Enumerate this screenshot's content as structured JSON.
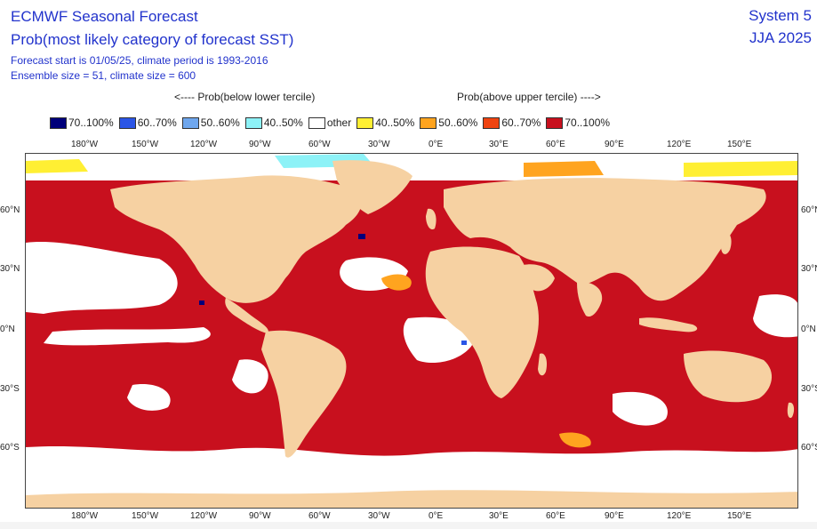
{
  "header": {
    "title": "ECMWF Seasonal Forecast",
    "subtitle": "Prob(most likely category of forecast SST)",
    "forecast_info": "Forecast start is 01/05/25, climate period is 1993-2016",
    "ensemble_info": "Ensemble size = 51, climate size = 600",
    "system": "System 5",
    "period": "JJA 2025"
  },
  "legend": {
    "below_label": "<---- Prob(below lower tercile)",
    "above_label": "Prob(above upper tercile) ---->",
    "items": [
      {
        "label": "70..100%",
        "color": "#00007a"
      },
      {
        "label": "60..70%",
        "color": "#2b55e6"
      },
      {
        "label": "50..60%",
        "color": "#6fa7ee"
      },
      {
        "label": "40..50%",
        "color": "#8df2f7"
      },
      {
        "label": "other",
        "color": "#ffffff"
      },
      {
        "label": "40..50%",
        "color": "#ffef33"
      },
      {
        "label": "50..60%",
        "color": "#ffa41f"
      },
      {
        "label": "60..70%",
        "color": "#ef4411"
      },
      {
        "label": "70..100%",
        "color": "#c8101e"
      }
    ]
  },
  "map": {
    "land_color": "#f6d1a2",
    "ocean_warm_color": "#c8101e",
    "x_ticks": [
      "180°W",
      "150°W",
      "120°W",
      "90°W",
      "60°W",
      "30°W",
      "0°E",
      "30°E",
      "60°E",
      "90°E",
      "120°E",
      "150°E"
    ],
    "y_ticks": [
      "60°N",
      "30°N",
      "0°N",
      "30°S",
      "60°S"
    ]
  }
}
